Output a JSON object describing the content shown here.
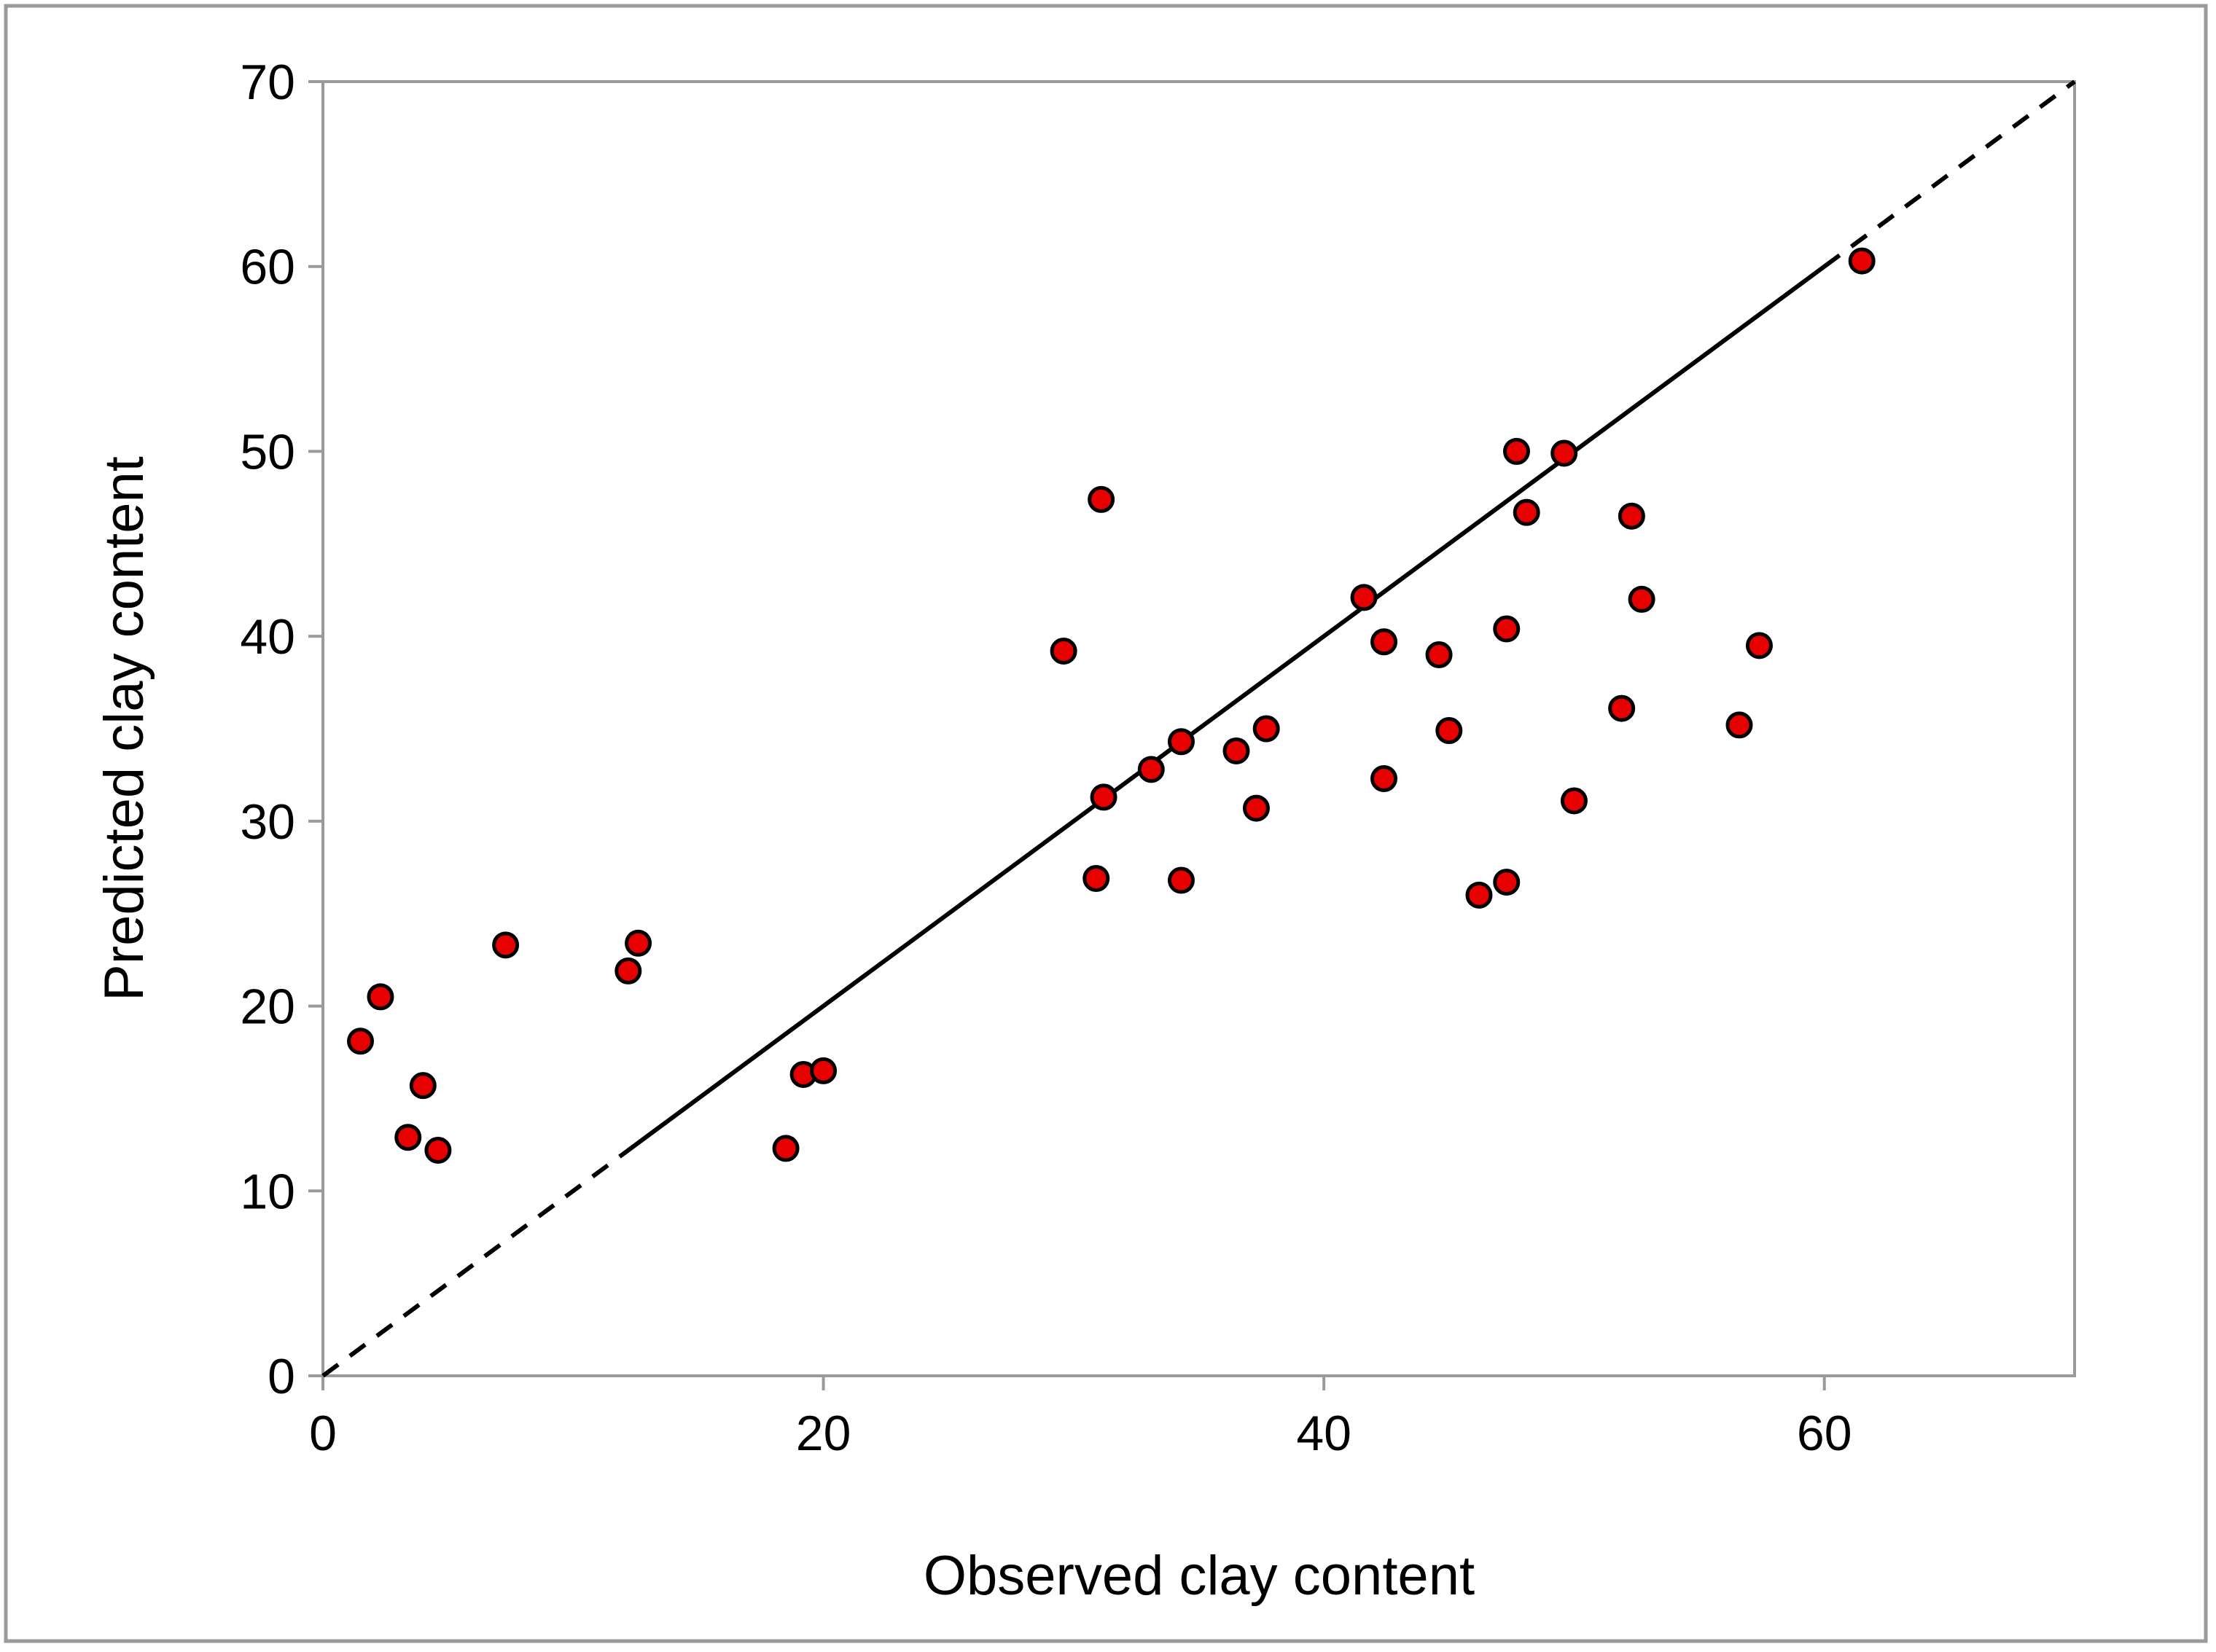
{
  "chart_data": {
    "type": "scatter",
    "title": "",
    "xlabel": "Observed clay content",
    "ylabel": "Predicted clay content",
    "xlim": [
      0,
      70
    ],
    "ylim": [
      0,
      70
    ],
    "x_ticks": [
      "0",
      "20",
      "40",
      "60"
    ],
    "y_ticks": [
      "0",
      "10",
      "20",
      "30",
      "40",
      "50",
      "60",
      "70"
    ],
    "grid": false,
    "legend": "none",
    "reference_line": {
      "kind": "1:1 line",
      "solid_range": [
        12,
        60
      ],
      "dashed_range": [
        [
          0,
          12
        ],
        [
          60,
          70
        ]
      ]
    },
    "series": [
      {
        "points": [
          [
            1.5,
            18.1
          ],
          [
            2.3,
            20.5
          ],
          [
            3.4,
            12.9
          ],
          [
            4.0,
            15.7
          ],
          [
            4.6,
            12.2
          ],
          [
            7.3,
            23.3
          ],
          [
            12.2,
            21.9
          ],
          [
            12.6,
            23.4
          ],
          [
            18.5,
            12.3
          ],
          [
            19.2,
            16.3
          ],
          [
            20.0,
            16.5
          ],
          [
            29.6,
            39.2
          ],
          [
            30.9,
            26.9
          ],
          [
            31.1,
            47.4
          ],
          [
            31.2,
            31.3
          ],
          [
            33.1,
            32.8
          ],
          [
            34.3,
            34.3
          ],
          [
            34.3,
            26.8
          ],
          [
            36.5,
            33.8
          ],
          [
            37.3,
            30.7
          ],
          [
            37.7,
            35.0
          ],
          [
            41.6,
            42.1
          ],
          [
            42.4,
            39.7
          ],
          [
            42.4,
            32.3
          ],
          [
            44.6,
            39.0
          ],
          [
            45.0,
            34.9
          ],
          [
            46.2,
            26.0
          ],
          [
            47.3,
            40.4
          ],
          [
            47.3,
            26.7
          ],
          [
            47.7,
            50.0
          ],
          [
            48.1,
            46.7
          ],
          [
            49.6,
            49.9
          ],
          [
            50.0,
            31.1
          ],
          [
            51.9,
            36.1
          ],
          [
            52.3,
            46.5
          ],
          [
            52.7,
            42.0
          ],
          [
            56.6,
            35.2
          ],
          [
            57.4,
            39.5
          ],
          [
            61.5,
            60.3
          ]
        ]
      }
    ]
  },
  "colors": {
    "point_fill": "#e60000",
    "point_stroke": "#000000",
    "axis": "#9a9a9a",
    "frame": "#9a9a9a",
    "line": "#000000"
  }
}
